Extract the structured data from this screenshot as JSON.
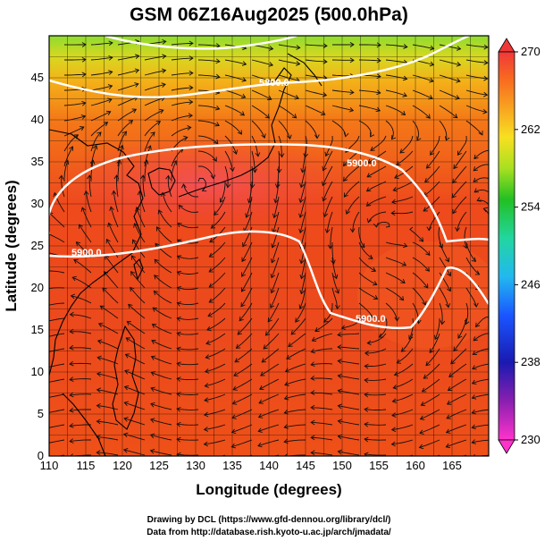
{
  "map": {
    "title": "GSM 06Z16Aug2025 (500.0hPa)",
    "x_axis": {
      "label": "Longitude (degrees)",
      "ticks": [
        "110",
        "115",
        "120",
        "125",
        "130",
        "135",
        "140",
        "145",
        "150",
        "155",
        "160",
        "165"
      ]
    },
    "y_axis": {
      "label": "Latitude  (degrees)",
      "ticks": [
        "0",
        "5",
        "10",
        "15",
        "20",
        "25",
        "30",
        "35",
        "40",
        "45"
      ]
    },
    "contour_labels": [
      "5800.0",
      "5900.0",
      "5900.0",
      "5900.0"
    ],
    "colorbar": {
      "ticks": [
        "230",
        "238",
        "246",
        "254",
        "262",
        "270"
      ]
    },
    "credits": [
      "Drawing by DCL (https://www.gfd-dennou.org/library/dcl/)",
      "Data from http://database.rish.kyoto-u.ac.jp/arch/jmadata/"
    ]
  },
  "chart_data": {
    "type": "heatmap",
    "title": "GSM 06Z16Aug2025 (500.0hPa)",
    "xlabel": "Longitude (degrees)",
    "ylabel": "Latitude  (degrees)",
    "xlim": [
      110,
      170
    ],
    "ylim": [
      0,
      50
    ],
    "color_range": [
      230,
      270
    ],
    "contour_levels": [
      5800,
      5900
    ]
  }
}
